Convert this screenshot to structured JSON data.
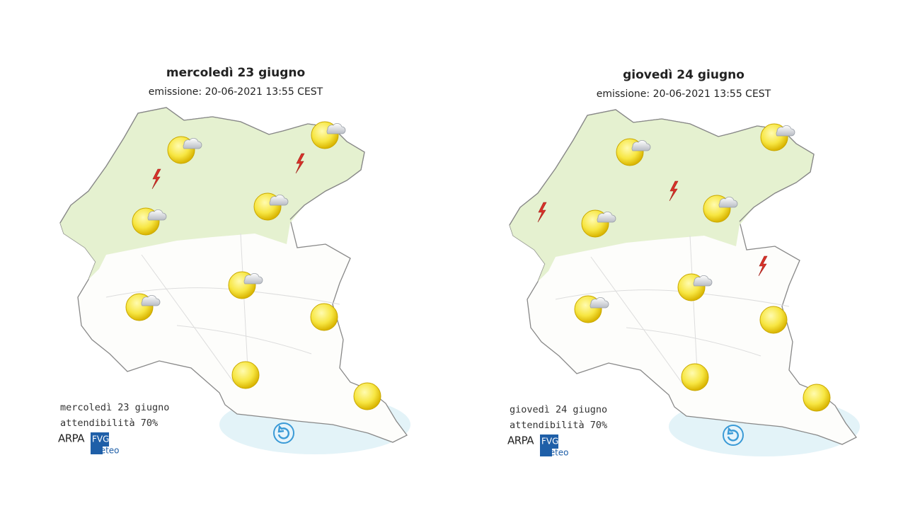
{
  "panels": [
    {
      "title": "mercoledì 23 giugno",
      "issued": "emissione: 20-06-2021 13:55 CEST",
      "footer_day": "mercoledì 23 giugno",
      "reliability": "attendibilità 70%",
      "logo": {
        "brand": "ARPA",
        "region": "FVG",
        "service": "meteo"
      }
    },
    {
      "title": "giovedì 24 giugno",
      "issued": "emissione: 20-06-2021 13:55 CEST",
      "footer_day": "giovedì 24 giugno",
      "reliability": "attendibilità 70%",
      "logo": {
        "brand": "ARPA",
        "region": "FVG",
        "service": "meteo"
      }
    }
  ]
}
